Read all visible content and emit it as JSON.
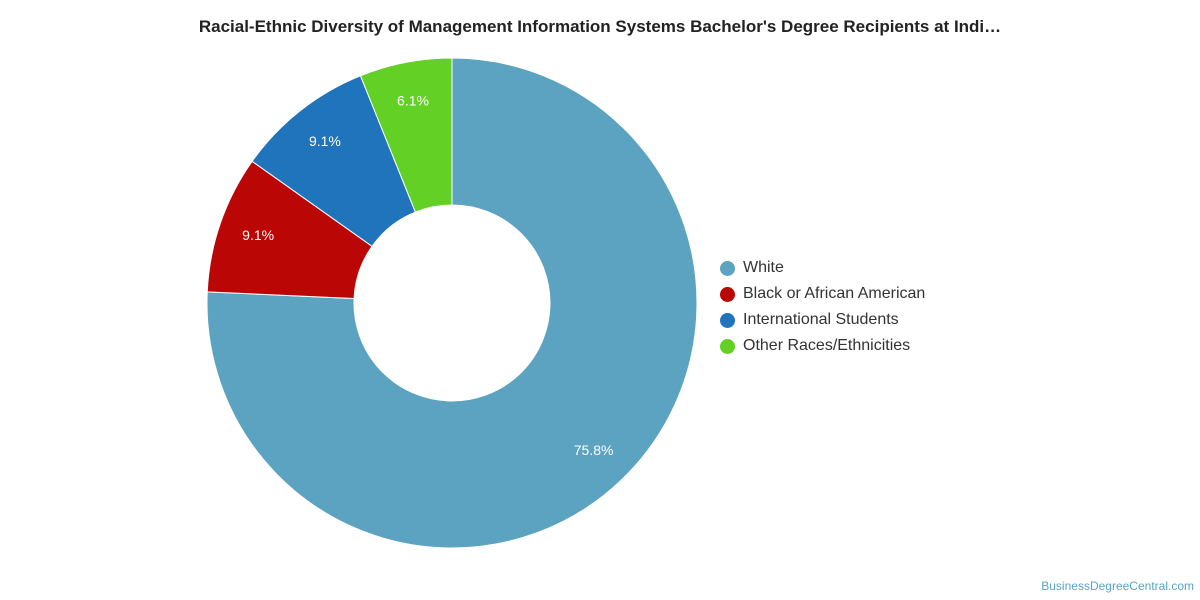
{
  "chart_data": {
    "type": "pie",
    "title": "Racial-Ethnic Diversity of Management Information Systems Bachelor's Degree Recipients at Indi…",
    "hole": "donut",
    "legend_position": "right",
    "slices": [
      {
        "label": "White",
        "value": 75.8,
        "display": "75.8%",
        "color": "#5ba3c1"
      },
      {
        "label": "Black or African American",
        "value": 9.1,
        "display": "9.1%",
        "color": "#bb0606"
      },
      {
        "label": "International Students",
        "value": 9.1,
        "display": "9.1%",
        "color": "#1f74bb"
      },
      {
        "label": "Other Races/Ethnicities",
        "value": 6.1,
        "display": "6.1%",
        "color": "#63d025"
      }
    ]
  },
  "footer": {
    "source": "BusinessDegreeCentral.com"
  }
}
